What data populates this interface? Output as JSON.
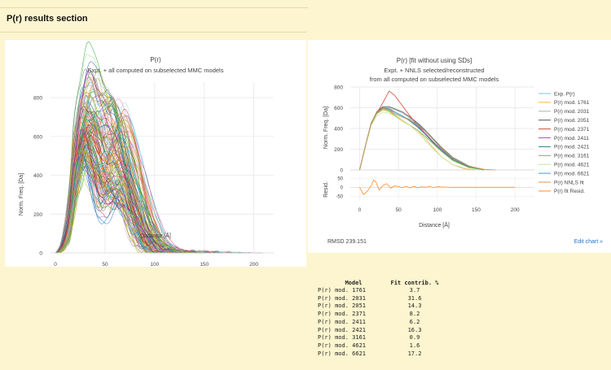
{
  "section": {
    "title": "P(r) results section"
  },
  "left_chart": {
    "title_line1": "P(r)",
    "title_line2": "Expt. + all computed on subselected MMC models"
  },
  "right_chart": {
    "title_line1": "P(r) [fit without using SDs]",
    "title_line2": "Expt. + NNLS selected/reconstructed",
    "title_line3": "from all computed on subselected MMC models",
    "rmsd_label": "RMSD 239.151",
    "edit_link": "Edit chart »"
  },
  "chart_data": [
    {
      "type": "line",
      "title": "P(r)",
      "subtitle": "Expt. + all computed on subselected MMC models",
      "xlabel": "Distance [Å]",
      "ylabel": "Norm. Freq. [Da]",
      "xlim": [
        -5,
        220
      ],
      "ylim": [
        0,
        880
      ],
      "xticks": [
        0,
        50,
        100,
        150,
        200
      ],
      "yticks": [
        0,
        200,
        400,
        600,
        800
      ],
      "grid": true,
      "legend": "none",
      "series_count": 150,
      "series_note": "many computed model curves, peaks ~450-850 near r 30-70, decaying to 0 at r 140-210"
    },
    {
      "type": "line",
      "title": "P(r) [fit without using SDs]",
      "subtitle": "Expt. + NNLS selected/reconstructed from all computed on subselected MMC models",
      "xlabel": "Distance [Å]",
      "ylabel": "Norm. Freq. [Da]",
      "xlim": [
        -12,
        225
      ],
      "ylim": [
        0,
        800
      ],
      "xticks": [
        0,
        50,
        100,
        150,
        200
      ],
      "yticks": [
        0,
        200,
        400,
        600,
        800
      ],
      "grid": true,
      "legend": "right",
      "series": [
        {
          "name": "Exp. P(r)",
          "color": "#7fc5d6",
          "x": [
            0,
            8,
            15,
            22,
            30,
            38,
            45,
            55,
            65,
            75,
            85,
            95,
            105,
            120,
            140,
            155,
            170
          ],
          "y": [
            0,
            250,
            450,
            555,
            590,
            575,
            540,
            510,
            490,
            450,
            380,
            300,
            220,
            120,
            40,
            8,
            0
          ]
        },
        {
          "name": "P(r) mod. 1761",
          "color": "#ffb347",
          "x": [
            0,
            8,
            15,
            22,
            30,
            38,
            45,
            55,
            65,
            75,
            85,
            95,
            105,
            120,
            135,
            150
          ],
          "y": [
            0,
            240,
            440,
            540,
            580,
            560,
            520,
            470,
            430,
            380,
            300,
            210,
            130,
            50,
            10,
            0
          ]
        },
        {
          "name": "P(r) mod. 2031",
          "color": "#b0b0b0",
          "x": [
            0,
            8,
            15,
            22,
            30,
            38,
            45,
            55,
            65,
            75,
            85,
            95,
            105,
            120,
            140,
            160
          ],
          "y": [
            0,
            240,
            440,
            550,
            600,
            600,
            580,
            550,
            500,
            440,
            370,
            290,
            210,
            110,
            35,
            0
          ]
        },
        {
          "name": "P(r) mod. 2051",
          "color": "#555555",
          "x": [
            0,
            8,
            15,
            22,
            30,
            38,
            45,
            55,
            65,
            75,
            85,
            95,
            105,
            120,
            140,
            160
          ],
          "y": [
            0,
            250,
            450,
            560,
            610,
            610,
            590,
            560,
            510,
            450,
            380,
            300,
            220,
            120,
            40,
            0
          ]
        },
        {
          "name": "P(r) mod. 2371",
          "color": "#d24b3c",
          "x": [
            0,
            8,
            15,
            22,
            30,
            38,
            45,
            55,
            65,
            75,
            85,
            95,
            105,
            120,
            140,
            160
          ],
          "y": [
            0,
            250,
            455,
            545,
            650,
            760,
            720,
            620,
            520,
            430,
            350,
            270,
            200,
            100,
            30,
            0
          ]
        },
        {
          "name": "P(r) mod. 2411",
          "color": "#9c5fb0",
          "x": [
            0,
            8,
            15,
            22,
            30,
            38,
            45,
            55,
            65,
            75,
            85,
            95,
            105,
            120,
            140,
            160
          ],
          "y": [
            0,
            250,
            450,
            550,
            600,
            580,
            560,
            520,
            480,
            420,
            350,
            270,
            200,
            100,
            30,
            0
          ]
        },
        {
          "name": "P(r) mod. 2421",
          "color": "#2f7f7f",
          "x": [
            0,
            8,
            15,
            22,
            30,
            38,
            45,
            55,
            65,
            75,
            85,
            95,
            105,
            120,
            140,
            160
          ],
          "y": [
            0,
            250,
            455,
            555,
            600,
            590,
            560,
            520,
            470,
            410,
            340,
            260,
            190,
            100,
            30,
            0
          ]
        },
        {
          "name": "P(r) mod. 3161",
          "color": "#80b040",
          "x": [
            0,
            8,
            15,
            22,
            30,
            38,
            45,
            55,
            65,
            75,
            85,
            95,
            105,
            120,
            140,
            160
          ],
          "y": [
            0,
            245,
            445,
            545,
            590,
            570,
            530,
            480,
            430,
            380,
            320,
            250,
            180,
            90,
            25,
            0
          ]
        },
        {
          "name": "P(r) mod. 4621",
          "color": "#c3e59a",
          "x": [
            0,
            8,
            15,
            22,
            30,
            38,
            45,
            55,
            65,
            75,
            85,
            95,
            105,
            120,
            140,
            160
          ],
          "y": [
            0,
            240,
            430,
            520,
            560,
            545,
            520,
            480,
            430,
            360,
            280,
            200,
            130,
            50,
            10,
            0
          ]
        },
        {
          "name": "P(r) mod. 6621",
          "color": "#2aa5c5",
          "x": [
            0,
            8,
            15,
            22,
            30,
            38,
            45,
            55,
            65,
            75,
            85,
            95,
            105,
            120,
            140,
            160
          ],
          "y": [
            0,
            250,
            450,
            550,
            600,
            590,
            560,
            520,
            480,
            430,
            370,
            290,
            210,
            110,
            35,
            0
          ]
        },
        {
          "name": "P(r) NNLS fit",
          "color": "#e8924a",
          "x": [
            0,
            8,
            15,
            22,
            30,
            38,
            45,
            55,
            65,
            75,
            85,
            95,
            105,
            120,
            140,
            160,
            175
          ],
          "y": [
            0,
            250,
            450,
            555,
            595,
            580,
            545,
            510,
            480,
            440,
            375,
            295,
            215,
            115,
            38,
            6,
            0
          ]
        }
      ],
      "residuals": {
        "name": "P(r) fit Resid.",
        "color": "#ff8c2a",
        "ylim": [
          -75,
          60
        ],
        "yticks": [
          -50,
          0,
          50
        ],
        "x": [
          0,
          5,
          10,
          15,
          18,
          21,
          25,
          30,
          35,
          40,
          45,
          50,
          55,
          60,
          65,
          70,
          75,
          80,
          85,
          90,
          95,
          100,
          110,
          120,
          140,
          160,
          180,
          200
        ],
        "y": [
          0,
          -40,
          -20,
          10,
          40,
          30,
          -15,
          10,
          20,
          -5,
          8,
          4,
          -2,
          6,
          -3,
          5,
          -2,
          3,
          0,
          4,
          -1,
          3,
          1,
          0,
          0,
          0,
          0,
          0
        ]
      }
    }
  ],
  "fit_table": {
    "headers": [
      "Model",
      "Fit contrib. %"
    ],
    "rows": [
      [
        "P(r) mod. 1761",
        "3.7"
      ],
      [
        "P(r) mod. 2031",
        "31.6"
      ],
      [
        "P(r) mod. 2051",
        "14.3"
      ],
      [
        "P(r) mod. 2371",
        "8.2"
      ],
      [
        "P(r) mod. 2411",
        "6.2"
      ],
      [
        "P(r) mod. 2421",
        "16.3"
      ],
      [
        "P(r) mod. 3161",
        "0.9"
      ],
      [
        "P(r) mod. 4621",
        "1.6"
      ],
      [
        "P(r) mod. 6621",
        "17.2"
      ]
    ]
  }
}
